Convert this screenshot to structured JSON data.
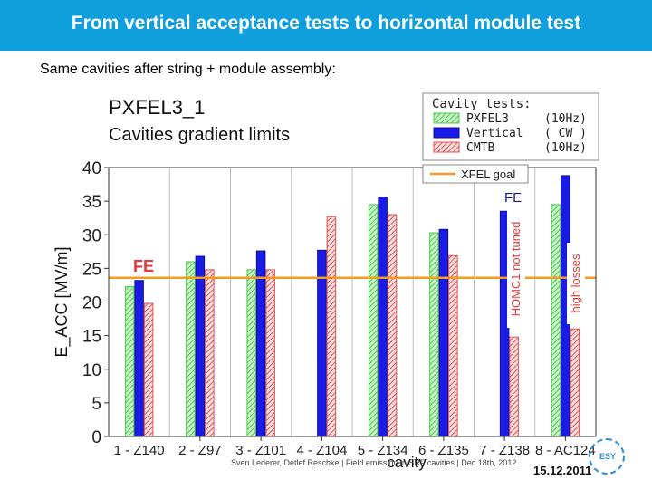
{
  "header": {
    "title": "From vertical acceptance tests to horizontal module test"
  },
  "subtitle": "Same cavities after string + module assembly:",
  "footer": {
    "text": "Sven Lederer, Detlef Reschke | Field emission in SRF cavities | Dec 18th, 2012",
    "date": "15.12.2011",
    "seal_text": "ESY"
  },
  "chart_data": {
    "type": "bar",
    "title": "PXFEL3_1",
    "subtitle": "Cavities gradient limits",
    "xlabel": "cavity",
    "ylabel": "E_ACC [MV/m]",
    "ylim": [
      0,
      40
    ],
    "yticks": [
      0,
      5,
      10,
      15,
      20,
      25,
      30,
      35,
      40
    ],
    "categories": [
      "1 - Z140",
      "2 - Z97",
      "3 - Z101",
      "4 - Z104",
      "5 - Z134",
      "6 - Z135",
      "7 - Z138",
      "8 - AC124"
    ],
    "legend_title": "Cavity tests:",
    "legend_position": "top-right",
    "series": [
      {
        "name": "PXFEL3",
        "note": "(10Hz)",
        "color": "#7ee07e",
        "hatch": true,
        "values": [
          22.3,
          26.0,
          24.8,
          null,
          34.5,
          30.3,
          null,
          34.5
        ]
      },
      {
        "name": "Vertical",
        "note": "( CW )",
        "color": "#1b1be8",
        "hatch": false,
        "values": [
          23.2,
          26.8,
          27.6,
          27.7,
          35.6,
          30.8,
          33.5,
          38.8
        ]
      },
      {
        "name": "CMTB",
        "note": "(10Hz)",
        "color": "#e05050",
        "hatch": true,
        "values": [
          19.8,
          24.8,
          24.8,
          32.7,
          33.0,
          26.9,
          14.8,
          16.0
        ]
      }
    ],
    "reference_line": {
      "name": "XFEL goal",
      "value": 23.6,
      "color": "#f39c20"
    },
    "annotations": [
      {
        "text": "FE",
        "color": "#e53a3a"
      },
      {
        "text": "FE",
        "color": "#1a1a8c"
      },
      {
        "text": "HOMC1 not tuned",
        "color": "#e53a3a"
      },
      {
        "text": "high losses",
        "color": "#e53a3a"
      }
    ],
    "grid": "vertical"
  }
}
